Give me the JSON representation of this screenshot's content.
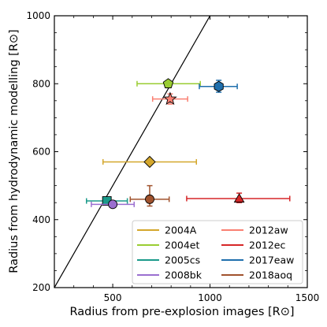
{
  "chart_data": {
    "type": "scatter",
    "xlabel": "Radius from pre-explosion images [R⊙]",
    "ylabel": "Radius from hydrodynamic modelling [R⊙]",
    "xlim": [
      200,
      1500
    ],
    "ylim": [
      200,
      1000
    ],
    "xticks": [
      500,
      1000,
      1500
    ],
    "xtick_labels": [
      "500",
      "1000",
      "1500"
    ],
    "yticks": [
      200,
      400,
      600,
      800,
      1000
    ],
    "ytick_labels": [
      "200",
      "400",
      "600",
      "800",
      "1000"
    ],
    "grid": false,
    "legend_position": "lower-right",
    "reference_line": {
      "from": [
        200,
        200
      ],
      "to": [
        1050,
        1050
      ],
      "style": "one-to-one"
    },
    "series": [
      {
        "name": "2004A",
        "color": "#d4a72c",
        "marker": "diamond",
        "x": 690,
        "y": 570,
        "x_err": [
          450,
          930
        ],
        "y_err": null
      },
      {
        "name": "2004et",
        "color": "#9acd32",
        "marker": "pentagon",
        "x": 785,
        "y": 800,
        "x_err": [
          625,
          950
        ],
        "y_err": null
      },
      {
        "name": "2005cs",
        "color": "#1a9a8a",
        "marker": "square",
        "x": 470,
        "y": 455,
        "x_err": [
          365,
          575
        ],
        "y_err": null
      },
      {
        "name": "2008bk",
        "color": "#9b6fd0",
        "marker": "circle",
        "x": 500,
        "y": 445,
        "x_err": [
          390,
          610
        ],
        "y_err": null
      },
      {
        "name": "2012aw",
        "color": "#fa8072",
        "marker": "star",
        "x": 795,
        "y": 755,
        "x_err": [
          705,
          885
        ],
        "y_err": [
          740,
          770
        ]
      },
      {
        "name": "2012ec",
        "color": "#d62728",
        "marker": "triangle",
        "x": 1150,
        "y": 462,
        "x_err": [
          880,
          1410
        ],
        "y_err": [
          450,
          478
        ]
      },
      {
        "name": "2017eaw",
        "color": "#1f6fad",
        "marker": "hexagon",
        "x": 1045,
        "y": 792,
        "x_err": [
          945,
          1140
        ],
        "y_err": [
          775,
          810
        ]
      },
      {
        "name": "2018aoq",
        "color": "#a0522d",
        "marker": "circle",
        "x": 690,
        "y": 460,
        "x_err": [
          590,
          790
        ],
        "y_err": [
          440,
          500
        ]
      }
    ],
    "legend": [
      {
        "label": "2004A",
        "color": "#d4a72c"
      },
      {
        "label": "2012aw",
        "color": "#fa8072"
      },
      {
        "label": "2004et",
        "color": "#9acd32"
      },
      {
        "label": "2012ec",
        "color": "#d62728"
      },
      {
        "label": "2005cs",
        "color": "#1a9a8a"
      },
      {
        "label": "2017eaw",
        "color": "#1f6fad"
      },
      {
        "label": "2008bk",
        "color": "#9b6fd0"
      },
      {
        "label": "2018aoq",
        "color": "#a0522d"
      }
    ]
  }
}
